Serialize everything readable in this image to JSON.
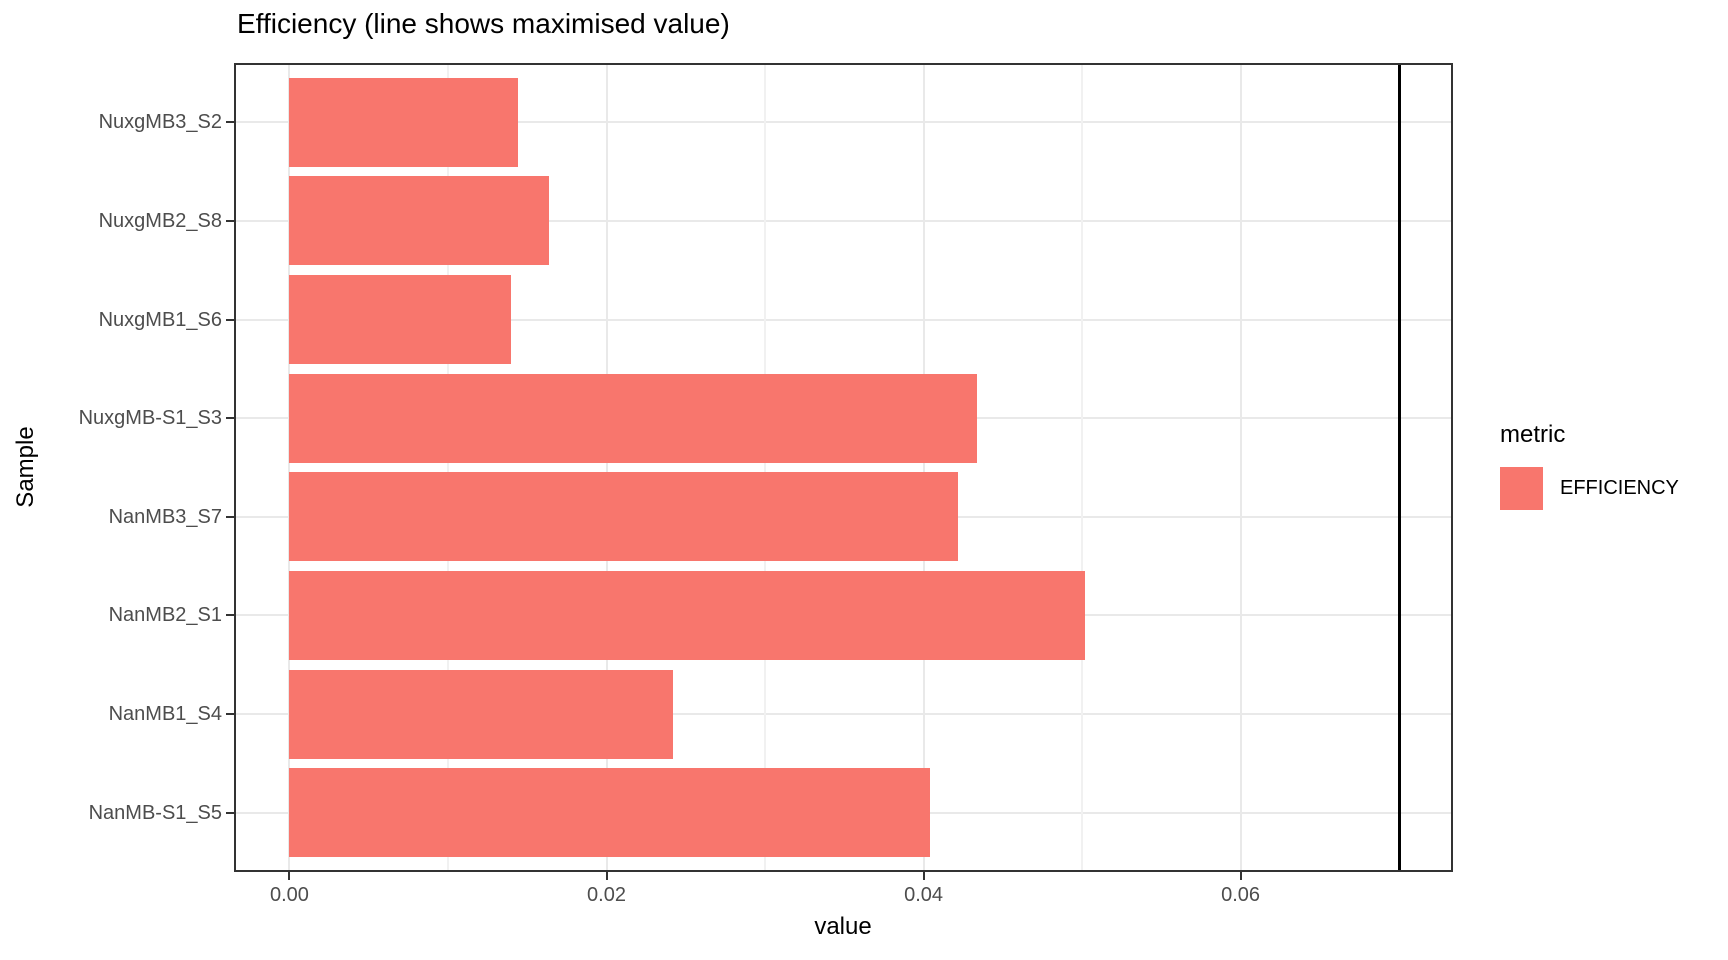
{
  "chart_data": {
    "type": "bar",
    "orientation": "horizontal",
    "title": "Efficiency (line shows maximised value)",
    "xlabel": "value",
    "ylabel": "Sample",
    "categories_order": "top-to-bottom",
    "categories": [
      "NuxgMB3_S2",
      "NuxgMB2_S8",
      "NuxgMB1_S6",
      "NuxgMB-S1_S3",
      "NanMB3_S7",
      "NanMB2_S1",
      "NanMB1_S4",
      "NanMB-S1_S5"
    ],
    "series": [
      {
        "name": "EFFICIENCY",
        "values": [
          0.0144,
          0.0164,
          0.014,
          0.0434,
          0.0422,
          0.0502,
          0.0242,
          0.0404
        ]
      }
    ],
    "max_line_value": 0.07,
    "xlim": [
      -0.0035,
      0.0734
    ],
    "x_major_ticks": [
      0,
      0.02,
      0.04,
      0.06
    ],
    "x_tick_labels": [
      "0.00",
      "0.02",
      "0.04",
      "0.06"
    ],
    "x_minor_ticks": [
      0.01,
      0.03,
      0.05,
      0.07
    ],
    "grid": "vertical major+minor gridlines; horizontal major gridline at each category center; white panel with dark border (theme_bw)",
    "legend": {
      "title": "metric",
      "position": "right",
      "items": [
        {
          "label": "EFFICIENCY",
          "color": "#F8766D"
        }
      ]
    },
    "colors": {
      "bar_fill": "#F8766D",
      "max_line": "#000000",
      "panel_border": "#333333",
      "grid_major": "#E9E9E9",
      "grid_minor": "#F1F1F1",
      "axis_text": "#4D4D4D",
      "tick_marks": "#333333",
      "title_text": "#000000",
      "background": "#FFFFFF"
    }
  }
}
